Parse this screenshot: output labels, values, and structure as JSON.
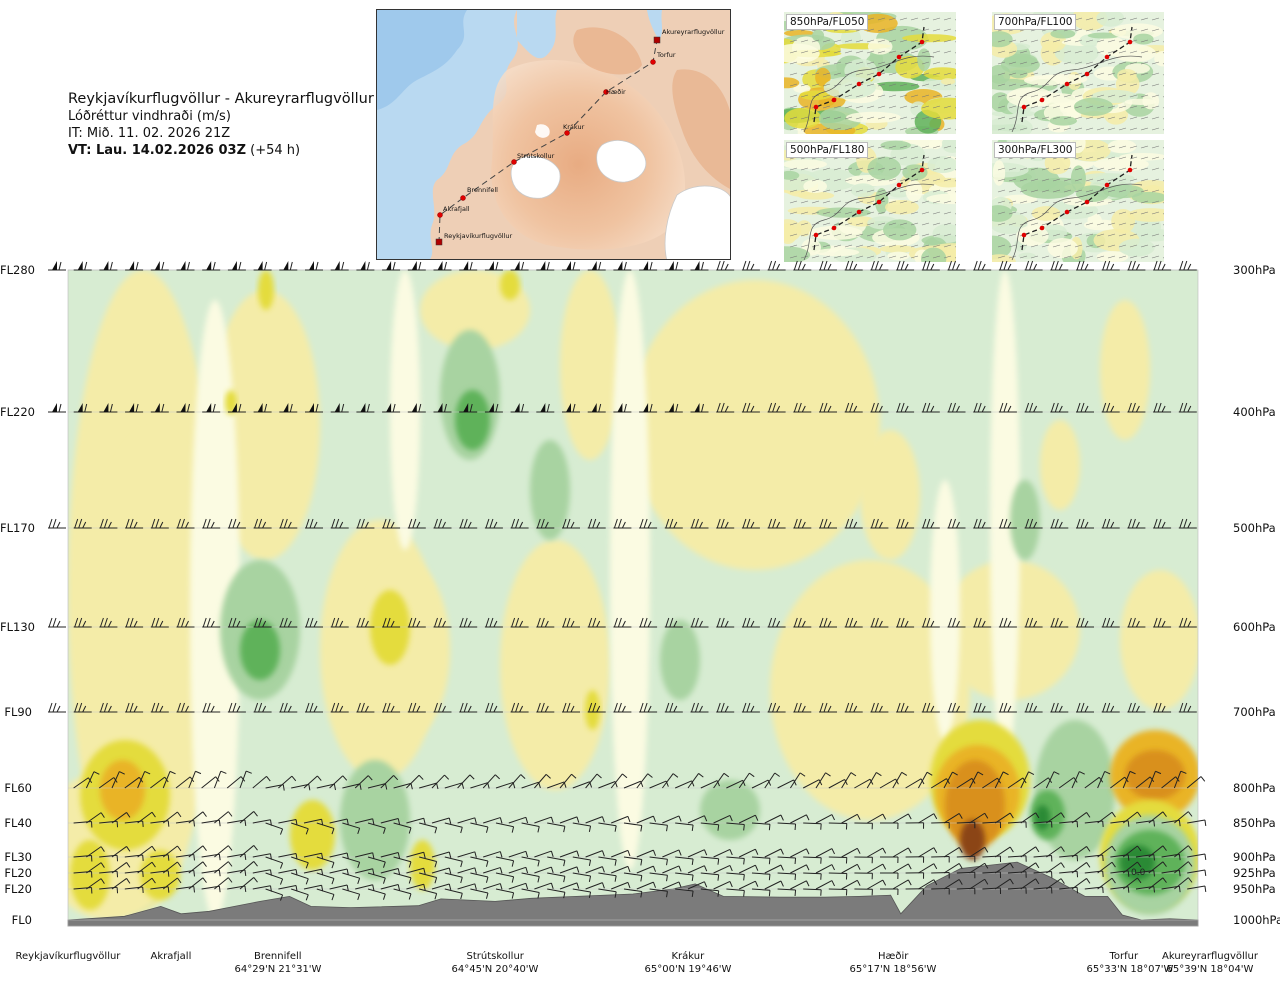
{
  "title": {
    "route": "Reykjavíkurflugvöllur - Akureyrarflugvöllur",
    "variable": "Lóðréttur vindhraði (m/s)",
    "issue_time": "IT: Mið. 11. 02. 2026 21Z",
    "valid_time_bold": "VT: Lau. 14.02.2026 03Z",
    "valid_lead": " (+54 h)"
  },
  "map": {
    "places": [
      "Akureyrarflugvöllur",
      "Torfur",
      "Hæðir",
      "Krákur",
      "Strútskollur",
      "Brennifell",
      "Akrafjall",
      "Reykjavíkurflugvöllur"
    ]
  },
  "panels": [
    {
      "id": "p850",
      "label": "850hPa/FL050"
    },
    {
      "id": "p700",
      "label": "700hPa/FL100"
    },
    {
      "id": "p500",
      "label": "500hPa/FL180"
    },
    {
      "id": "p300",
      "label": "300hPa/FL300"
    }
  ],
  "chart_data": {
    "type": "heatmap",
    "title": "Lóðréttur vindhraði (m/s)",
    "x_axis": {
      "label": "",
      "waypoints": [
        {
          "name": "Reykjavíkurflugvöllur",
          "coord": ""
        },
        {
          "name": "Akrafjall",
          "coord": ""
        },
        {
          "name": "Brennifell",
          "coord": "64°29'N 21°31'W"
        },
        {
          "name": "Strútskollur",
          "coord": "64°45'N 20°40'W"
        },
        {
          "name": "Krákur",
          "coord": "65°00'N 19°46'W"
        },
        {
          "name": "Hæðir",
          "coord": "65°17'N 18°56'W"
        },
        {
          "name": "Torfur",
          "coord": "65°33'N 18°07'W"
        },
        {
          "name": "Akureyrarflugvöllur",
          "coord": "65°39'N 18°04'W"
        }
      ],
      "route_fraction": [
        0.0,
        0.082,
        0.196,
        0.378,
        0.555,
        0.737,
        0.933,
        1.0
      ]
    },
    "y_axis_left": {
      "label": "",
      "ticks": [
        "FL280",
        "FL220",
        "FL170",
        "FL130",
        "FL90",
        "FL60",
        "FL40",
        "FL30",
        "FL20",
        "FL20",
        "FL0"
      ]
    },
    "y_axis_right": {
      "label": "",
      "ticks": [
        "300hPa",
        "400hPa",
        "500hPa",
        "600hPa",
        "700hPa",
        "800hPa",
        "850hPa",
        "900hPa",
        "925hPa",
        "950hPa",
        "1000hPa"
      ],
      "pressure_hPa": [
        300,
        400,
        500,
        600,
        700,
        800,
        850,
        900,
        925,
        950,
        1000
      ]
    },
    "contour_colors": {
      "strong_up_dark": "#8b4513",
      "up_orange": "#d9901c",
      "up_amber": "#e9b426",
      "up_yellow": "#e4dc3c",
      "weak_up": "#f4eca8",
      "near_zero": "#fbfbe2",
      "weak_down": "#d7ecd2",
      "down_mid": "#a8d3a1",
      "down_strong": "#5fb25a",
      "down_max": "#2a8a34",
      "terrain": "#7b7b7b"
    },
    "annotations": [
      "0.0"
    ],
    "terrain_profile": {
      "route_fraction": [
        0.0,
        0.05,
        0.082,
        0.1,
        0.125,
        0.17,
        0.196,
        0.215,
        0.25,
        0.31,
        0.33,
        0.378,
        0.41,
        0.45,
        0.5,
        0.535,
        0.555,
        0.58,
        0.63,
        0.67,
        0.7,
        0.728,
        0.737,
        0.76,
        0.79,
        0.84,
        0.87,
        0.9,
        0.92,
        0.933,
        0.95,
        0.975,
        1.0
      ],
      "pressure_hPa": [
        1000,
        994,
        978,
        990,
        986,
        970,
        962,
        978,
        980,
        977,
        966,
        970,
        965,
        962,
        958,
        950,
        942,
        962,
        963,
        963,
        962,
        960,
        990,
        945,
        918,
        908,
        932,
        962,
        962,
        992,
        1000,
        998,
        1000
      ]
    },
    "wind_levels_hPa": [
      300,
      400,
      500,
      600,
      700,
      800,
      850,
      900,
      925,
      950
    ]
  }
}
